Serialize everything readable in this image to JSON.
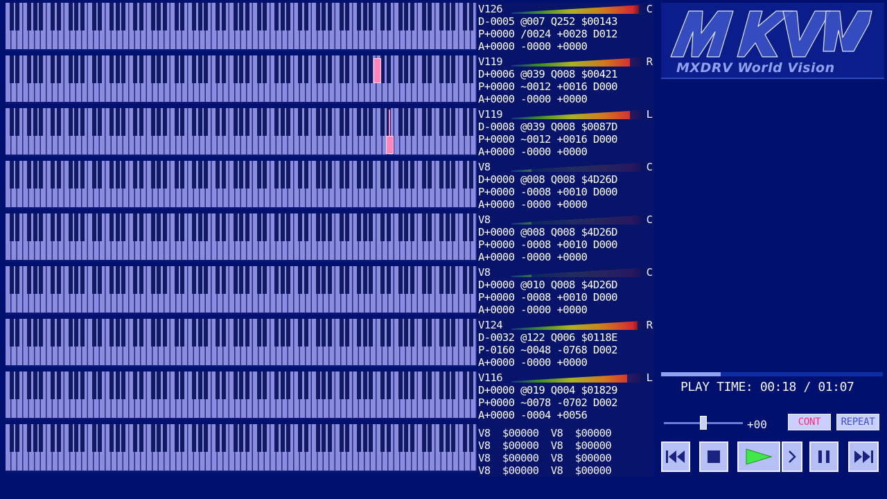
{
  "tracks": [
    {
      "vol": "V126",
      "line2": "D-0005 @007 Q252 $00143",
      "line3": "P+0000 /0024 +0028 D012",
      "line4": "A+0000 -0000 +0000",
      "pan": "C",
      "level": 0.97
    },
    {
      "vol": "V119",
      "line2": "D+0006 @039 Q008 $00421",
      "line3": "P+0000 ~0012 +0016 D000",
      "line4": "A+0000 -0000 +0000",
      "pan": "R",
      "level": 0.9
    },
    {
      "vol": "V119",
      "line2": "D-0008 @039 Q008 $0087D",
      "line3": "P+0000 ~0012 +0016 D000",
      "line4": "A+0000 -0000 +0000",
      "pan": "L",
      "level": 0.9
    },
    {
      "vol": "V8",
      "line2": "D+0000 @008 Q008 $4D26D",
      "line3": "P+0000 -0008 +0010 D000",
      "line4": "A+0000 -0000 +0000",
      "pan": "C",
      "level": 0.15
    },
    {
      "vol": "V8",
      "line2": "D+0000 @008 Q008 $4D26D",
      "line3": "P+0000 -0008 +0010 D000",
      "line4": "A+0000 -0000 +0000",
      "pan": "C",
      "level": 0.15
    },
    {
      "vol": "V8",
      "line2": "D+0000 @010 Q008 $4D26D",
      "line3": "P+0000 -0008 +0010 D000",
      "line4": "A+0000 -0000 +0000",
      "pan": "C",
      "level": 0.15
    },
    {
      "vol": "V124",
      "line2": "D-0032 @122 Q006 $0118E",
      "line3": "P-0160 ~0048 -0768 D002",
      "line4": "A+0000 -0000 +0000",
      "pan": "R",
      "level": 0.96
    },
    {
      "vol": "V116",
      "line2": "D+0000 @019 Q004 $01829",
      "line3": "P+0000 ~0078 -0702 D002",
      "line4": "A+0000 -0004 +0056",
      "pan": "L",
      "level": 0.88
    }
  ],
  "extra_channels": [
    "V8  $00000  V8  $00000",
    "V8  $00000  V8  $00000",
    "V8  $00000  V8  $00000",
    "V8  $00000  V8  $00000"
  ],
  "notes": [
    {
      "row": 1,
      "key_position": 0.788,
      "length": "long"
    },
    {
      "row": 2,
      "key_position": 0.815,
      "length": "short"
    }
  ],
  "logo": {
    "mark": "MXWV",
    "subtitle": "MXDRV World Vision"
  },
  "playback": {
    "label": "PLAY TIME:",
    "current": "00:18",
    "separator": "/",
    "total": "01:07",
    "progress": 0.269
  },
  "volume": {
    "offset": "+00",
    "slider_position": 0.5
  },
  "buttons": {
    "cont": "CONT",
    "repeat": "REPEAT"
  },
  "icons": {
    "prev": "skip-back-icon",
    "stop": "stop-icon",
    "play": "play-icon",
    "step": "step-forward-icon",
    "pause": "pause-icon",
    "next": "skip-forward-icon"
  },
  "colors": {
    "background": "#00106e",
    "piano_white": "#8d8dde",
    "note": "#ff86bd",
    "play_active": "#41e84a",
    "cont_active": "#ff2a6e"
  }
}
